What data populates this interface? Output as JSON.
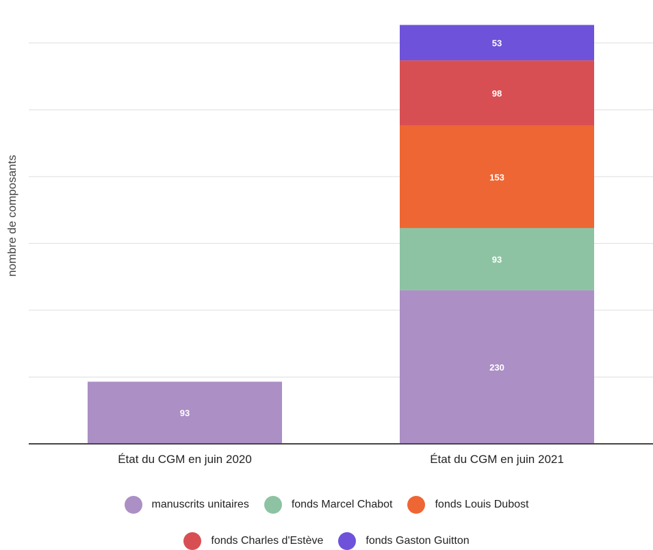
{
  "chart_data": {
    "type": "bar",
    "stacked": true,
    "categories": [
      "État du CGM en juin 2020",
      "État du CGM en juin 2021"
    ],
    "series": [
      {
        "name": "manuscrits unitaires",
        "color": "#ab8fc5",
        "values": [
          93,
          230
        ]
      },
      {
        "name": "fonds Marcel Chabot",
        "color": "#8dc3a3",
        "values": [
          0,
          93
        ]
      },
      {
        "name": "fonds Louis Dubost",
        "color": "#ee6633",
        "values": [
          0,
          153
        ]
      },
      {
        "name": "fonds Charles d'Estève",
        "color": "#d84f53",
        "values": [
          0,
          98
        ]
      },
      {
        "name": "fonds Gaston Guitton",
        "color": "#6e52d9",
        "values": [
          0,
          53
        ]
      }
    ],
    "ylabel": "nombre de composants",
    "ylim": [
      0,
      650
    ],
    "yticks": [
      0,
      100,
      200,
      300,
      400,
      500,
      600
    ],
    "grid": true,
    "show_y_tick_labels": false,
    "data_labels": true,
    "legend_position": "bottom"
  }
}
